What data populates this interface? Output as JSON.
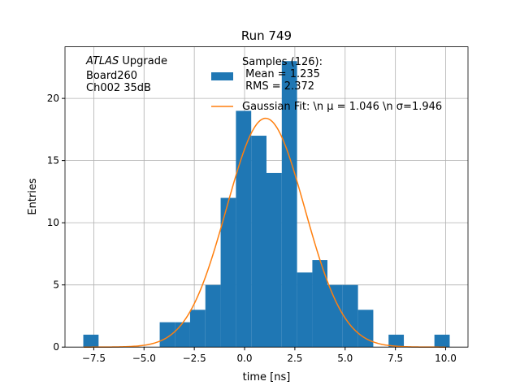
{
  "chart_data": {
    "type": "histogram",
    "title": "Run 749",
    "xlabel": "time [ns]",
    "ylabel": "Entries",
    "annotation": {
      "italic": "ATLAS",
      "rest": " Upgrade",
      "lines": [
        "Board260",
        "Ch002 35dB"
      ]
    },
    "bins": [
      -8.02,
      -7.26,
      -6.5,
      -5.74,
      -4.98,
      -4.22,
      -3.47,
      -2.71,
      -1.95,
      -1.19,
      -0.43,
      0.33,
      1.09,
      1.85,
      2.61,
      3.37,
      4.12,
      4.88,
      5.64,
      6.4,
      7.16,
      7.92,
      8.68,
      9.44,
      10.2
    ],
    "series": [
      {
        "name": [
          "Samples (126):",
          " Mean = 1.235",
          " RMS = 2.372"
        ],
        "color": "#1f77b4",
        "values": [
          1,
          0,
          0,
          0,
          0,
          2,
          2,
          3,
          5,
          12,
          19,
          17,
          14,
          23,
          6,
          7,
          5,
          5,
          3,
          0,
          1,
          0,
          0,
          1
        ]
      },
      {
        "name": "Gaussian Fit: \\n μ = 1.046 \\n σ=1.946",
        "color": "#ff7f0e",
        "fit": {
          "amplitude": 18.4,
          "mu": 1.046,
          "sigma": 1.946,
          "xrange": [
            -8.0,
            10.0
          ]
        }
      }
    ],
    "xlim": [
      -8.93,
      11.11
    ],
    "ylim": [
      0,
      24.15
    ],
    "xticks": [
      {
        "value": -7.5,
        "label": "−7.5"
      },
      {
        "value": -5,
        "label": "−5.0"
      },
      {
        "value": -2.5,
        "label": "−2.5"
      },
      {
        "value": 0,
        "label": "0.0"
      },
      2.5,
      {
        "value": 5,
        "label": "5.0"
      },
      7.5,
      {
        "value": 10,
        "label": "10.0"
      }
    ],
    "yticks": [
      0,
      5,
      10,
      15,
      20
    ],
    "grid": true
  }
}
